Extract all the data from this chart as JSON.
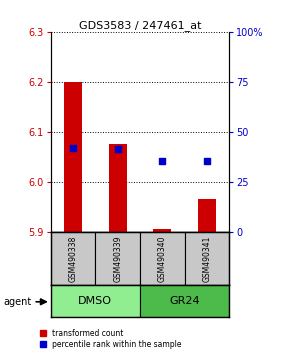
{
  "title": "GDS3583 / 247461_at",
  "samples": [
    "GSM490338",
    "GSM490339",
    "GSM490340",
    "GSM490341"
  ],
  "red_values": [
    6.2,
    6.075,
    5.905,
    5.965
  ],
  "red_base": 5.9,
  "blue_values": [
    6.068,
    6.065,
    6.042,
    6.042
  ],
  "ylim_left": [
    5.9,
    6.3
  ],
  "ylim_right": [
    0,
    100
  ],
  "yticks_left": [
    5.9,
    6.0,
    6.1,
    6.2,
    6.3
  ],
  "yticks_right": [
    0,
    25,
    50,
    75,
    100
  ],
  "ytick_labels_right": [
    "0",
    "25",
    "50",
    "75",
    "100%"
  ],
  "left_color": "#CC0000",
  "right_color": "#0000CC",
  "bar_width": 0.4,
  "blue_marker_size": 25,
  "legend_red": "transformed count",
  "legend_blue": "percentile rank within the sample",
  "sample_box_color": "#C8C8C8",
  "dmso_color": "#90EE90",
  "gr24_color": "#4CBB4C",
  "background_color": "#FFFFFF"
}
